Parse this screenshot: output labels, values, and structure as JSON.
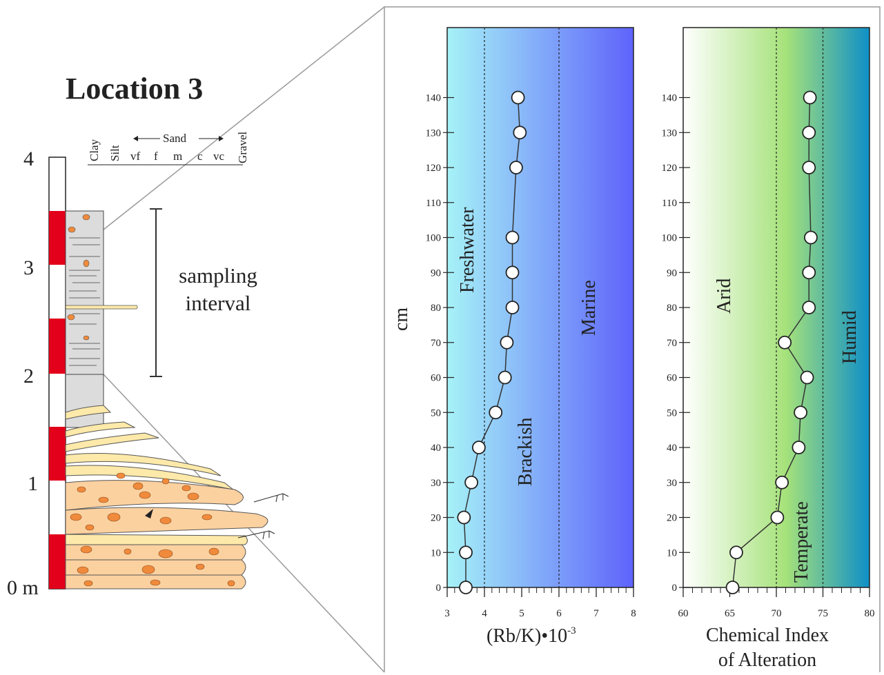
{
  "location_title": "Location 3",
  "column": {
    "meter_labels": [
      "4",
      "3",
      "2",
      "1",
      "0 m"
    ],
    "grain_size_labels": [
      "Clay",
      "Silt",
      "vf",
      "f",
      "m",
      "c",
      "vc",
      "Gravel"
    ],
    "sand_label": "Sand",
    "sampling_label_line1": "sampling",
    "sampling_label_line2": "interval"
  },
  "colors": {
    "scale_red": "#e2001a",
    "sand_fill": "#fde9a9",
    "gravel_fill": "#fbd1a0",
    "clast_fill": "#f08a3c",
    "frame_gray": "#999999"
  },
  "chart_data": [
    {
      "type": "line",
      "ylabel": "cm",
      "xlabel_main": "(Rb/K)•10",
      "xlabel_exp": "-3",
      "xlim": [
        3,
        8
      ],
      "ylim": [
        0,
        160
      ],
      "xticks": [
        3,
        4,
        5,
        6,
        7,
        8
      ],
      "yticks": [
        0,
        10,
        20,
        30,
        40,
        50,
        60,
        70,
        80,
        90,
        100,
        110,
        120,
        130,
        140
      ],
      "thresholds": [
        4,
        6
      ],
      "zones": [
        "Freshwater",
        "Brackish",
        "Marine"
      ],
      "gradient": [
        "#a6f2f7",
        "#5e63fb"
      ],
      "x": [
        3.5,
        3.5,
        3.45,
        3.65,
        3.85,
        4.3,
        4.55,
        4.6,
        4.75,
        4.75,
        4.75,
        4.85,
        4.95,
        4.9
      ],
      "y": [
        0,
        10,
        20,
        30,
        40,
        50,
        60,
        70,
        80,
        90,
        100,
        120,
        130,
        140
      ]
    },
    {
      "type": "line",
      "xlabel_line1": "Chemical Index",
      "xlabel_line2": "of Alteration",
      "xlim": [
        60,
        80
      ],
      "ylim": [
        0,
        160
      ],
      "xticks": [
        60,
        65,
        70,
        75,
        80
      ],
      "yticks": [
        0,
        10,
        20,
        30,
        40,
        50,
        60,
        70,
        80,
        90,
        100,
        110,
        120,
        130,
        140
      ],
      "thresholds": [
        70,
        75
      ],
      "zones": [
        "Arid",
        "Temperate",
        "Humid"
      ],
      "gradient": [
        "#ffffff",
        "#a6e27a",
        "#0f8fc7"
      ],
      "x": [
        65.3,
        65.7,
        70.1,
        70.6,
        72.4,
        72.6,
        73.3,
        70.9,
        73.5,
        73.5,
        73.7,
        73.5,
        73.5,
        73.6
      ],
      "y": [
        0,
        10,
        20,
        30,
        40,
        50,
        60,
        70,
        80,
        90,
        100,
        120,
        130,
        140
      ]
    }
  ]
}
